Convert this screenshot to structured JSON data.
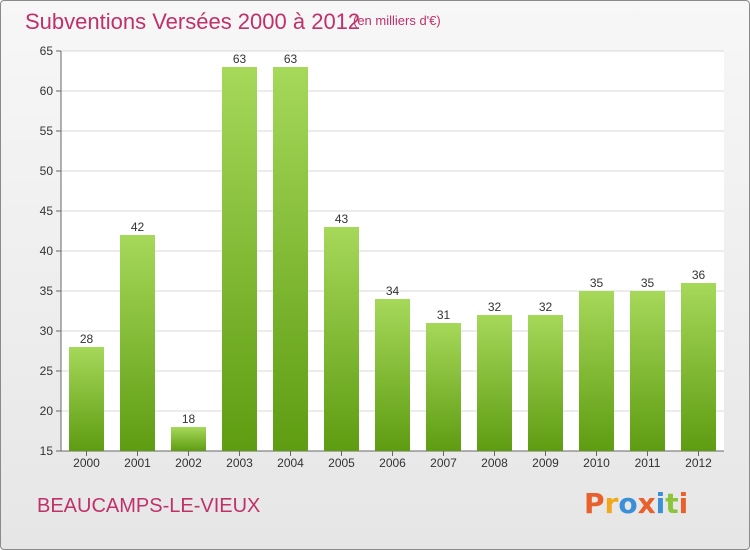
{
  "header": {
    "title": "Subventions Versées 2000 à 2012",
    "unit_note": "(en milliers d'€)"
  },
  "footer": {
    "commune": "BEAUCAMPS-LE-VIEUX",
    "logo_text": "Proxiti",
    "logo_colors": [
      "#e8612c",
      "#f2a81d",
      "#3a8fd6",
      "#e8612c",
      "#3a8fd6",
      "#8cc43c",
      "#e8612c"
    ]
  },
  "colors": {
    "text_accent": "#c0306a",
    "bar_top": "#a6d85a",
    "bar_bottom": "#5e9c12",
    "grid": "#d9d9d9",
    "axis": "#666666"
  },
  "chart_data": {
    "type": "bar",
    "title": "Subventions Versées 2000 à 2012",
    "xlabel": "",
    "ylabel": "",
    "categories": [
      "2000",
      "2001",
      "2002",
      "2003",
      "2004",
      "2005",
      "2006",
      "2007",
      "2008",
      "2009",
      "2010",
      "2011",
      "2012"
    ],
    "values": [
      28,
      42,
      18,
      63,
      63,
      43,
      34,
      31,
      32,
      32,
      35,
      35,
      36
    ],
    "ylim": [
      15,
      65
    ],
    "yticks": [
      15,
      20,
      25,
      30,
      35,
      40,
      45,
      50,
      55,
      60,
      65
    ],
    "grid": true,
    "data_labels": true
  }
}
